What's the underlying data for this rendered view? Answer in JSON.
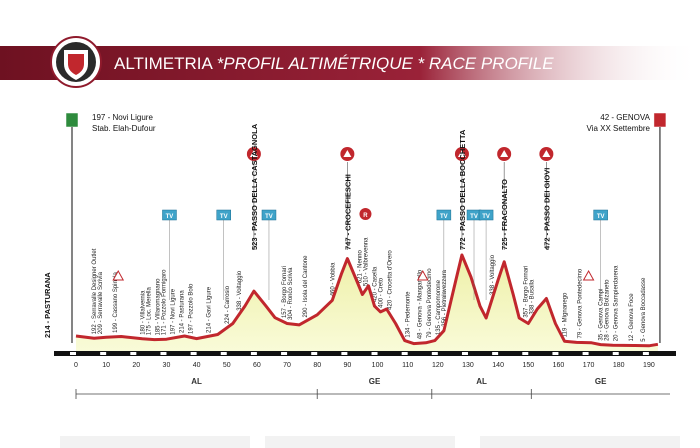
{
  "header": {
    "title_a": "ALTIMETRIA ",
    "title_b": "*PROFIL ALTIMÉTRIQUE * RACE PROFILE"
  },
  "chart_data": {
    "type": "area",
    "title": "ALTIMETRIA *PROFIL ALTIMÉTRIQUE * RACE PROFILE",
    "xlabel": "",
    "ylabel": "",
    "xlim": [
      0,
      197
    ],
    "ylim": [
      0,
      800
    ],
    "x_ticks": [
      0,
      10,
      20,
      30,
      40,
      50,
      60,
      70,
      80,
      90,
      100,
      110,
      120,
      130,
      140,
      150,
      160,
      170,
      180,
      190
    ],
    "profile": [
      [
        0,
        214
      ],
      [
        6,
        192
      ],
      [
        10,
        205
      ],
      [
        15,
        210
      ],
      [
        22,
        180
      ],
      [
        26,
        160
      ],
      [
        30,
        171
      ],
      [
        36,
        214
      ],
      [
        40,
        185
      ],
      [
        47,
        224
      ],
      [
        52,
        300
      ],
      [
        56,
        420
      ],
      [
        59,
        523
      ],
      [
        63,
        420
      ],
      [
        66,
        340
      ],
      [
        70,
        300
      ],
      [
        74,
        290
      ],
      [
        80,
        360
      ],
      [
        85,
        460
      ],
      [
        88,
        640
      ],
      [
        90,
        747
      ],
      [
        93,
        600
      ],
      [
        95,
        500
      ],
      [
        97,
        560
      ],
      [
        99,
        420
      ],
      [
        101,
        380
      ],
      [
        103,
        400
      ],
      [
        106,
        300
      ],
      [
        109,
        134
      ],
      [
        112,
        60
      ],
      [
        116,
        79
      ],
      [
        119,
        135
      ],
      [
        122,
        250
      ],
      [
        126,
        600
      ],
      [
        128,
        772
      ],
      [
        131,
        620
      ],
      [
        134,
        420
      ],
      [
        136,
        338
      ],
      [
        140,
        600
      ],
      [
        142,
        725
      ],
      [
        145,
        500
      ],
      [
        147,
        338
      ],
      [
        150,
        300
      ],
      [
        153,
        400
      ],
      [
        156,
        472
      ],
      [
        159,
        300
      ],
      [
        162,
        120
      ],
      [
        166,
        90
      ],
      [
        171,
        79
      ],
      [
        174,
        35
      ],
      [
        178,
        20
      ],
      [
        185,
        12
      ],
      [
        190,
        5
      ],
      [
        193,
        42
      ]
    ],
    "summits": [
      {
        "km": 59,
        "label": "523 - PASSO DELLA CASTAGNOLA"
      },
      {
        "km": 90,
        "label": "747 - CROCEFIESCHI"
      },
      {
        "km": 128,
        "label": "772 - PASSO DELLA BOCCHETTA"
      },
      {
        "km": 142,
        "label": "725 - FRACONALTO"
      },
      {
        "km": 156,
        "label": "472 - PASSO DEI GIOVI"
      }
    ],
    "waypoints": [
      {
        "km": 6,
        "label": "192 - Serravalle Designer Outlet"
      },
      {
        "km": 8,
        "label": "209 - Serravalle Scrivia"
      },
      {
        "km": 13,
        "label": "199 - Cassano Spinola"
      },
      {
        "km": 22,
        "label": "180 - Villalvernia"
      },
      {
        "km": 24,
        "label": "175 - Loc. Merella"
      },
      {
        "km": 27,
        "label": "185 - Villaromagnano"
      },
      {
        "km": 29,
        "label": "171 - Pozzolo Formigaro"
      },
      {
        "km": 32,
        "label": "197 - Novi Ligure"
      },
      {
        "km": 35,
        "label": "214 - Pasturana"
      },
      {
        "km": 38,
        "label": "197 - Pozzolo Bolo"
      },
      {
        "km": 44,
        "label": "214 - Gavi Ligure"
      },
      {
        "km": 50,
        "label": "224 - Carrosio"
      },
      {
        "km": 54,
        "label": "338 - Voltaggio"
      },
      {
        "km": 69,
        "label": "157 - Borgo Fornari"
      },
      {
        "km": 71,
        "label": "304 - Ronco Scrivia"
      },
      {
        "km": 76,
        "label": "290 - Isola del Cantone"
      },
      {
        "km": 85,
        "label": "460 - Vobbia"
      },
      {
        "km": 94,
        "label": "621 - Nenno"
      },
      {
        "km": 96,
        "label": "510 - Valbrevenna"
      },
      {
        "km": 99,
        "label": "420 - Casella"
      },
      {
        "km": 101,
        "label": "400 - Creto"
      },
      {
        "km": 104,
        "label": "420 - Crocetta d'Orero"
      },
      {
        "km": 110,
        "label": "134 - Pedemonte"
      },
      {
        "km": 114,
        "label": "48 - Genova - Manganello"
      },
      {
        "km": 117,
        "label": "79 - Genova Pontedecimo"
      },
      {
        "km": 120,
        "label": "135 - Campomorone"
      },
      {
        "km": 122,
        "label": "256 - Pietralavezzara"
      },
      {
        "km": 138,
        "label": "338 - Voltaggio"
      },
      {
        "km": 149,
        "label": "357 - Borgo Fornari"
      },
      {
        "km": 151,
        "label": "338 - Busalla"
      },
      {
        "km": 162,
        "label": "119 - Mignanego"
      },
      {
        "km": 167,
        "label": "79 - Genova Pontedecimo"
      },
      {
        "km": 174,
        "label": "35 - Genova Campi"
      },
      {
        "km": 176,
        "label": "28 - Genova Bolzaneto"
      },
      {
        "km": 179,
        "label": "20 - Genova Sampierdarena"
      },
      {
        "km": 184,
        "label": "12 - Genova Foce"
      },
      {
        "km": 188,
        "label": "5 - Genova Boccadasse"
      }
    ],
    "tv_markers": [
      31,
      49,
      64,
      122,
      132,
      136,
      174
    ],
    "tv_label": "TV",
    "sprint_markers": [
      14,
      115,
      170
    ],
    "feed_marker_km": 96,
    "feed_label": "R",
    "start": {
      "elev_place": "197 - Novi Ligure",
      "venue": "Stab. Elah-Dufour",
      "altitude_label": "214 - PASTURANA"
    },
    "finish": {
      "elev_place": "42 - GENOVA",
      "venue": "Via XX Settembre"
    },
    "regions": [
      {
        "from": 0,
        "to": 80,
        "label": "AL"
      },
      {
        "from": 80,
        "to": 118,
        "label": "GE"
      },
      {
        "from": 118,
        "to": 151,
        "label": "AL"
      },
      {
        "from": 151,
        "to": 197,
        "label": "GE"
      }
    ],
    "colors": {
      "banner": "#8f1a2c",
      "profile_line": "#c1272d",
      "fill_top": "#eef0a8",
      "fill_bottom": "#f9fbd8",
      "tv": "#3fa3c9"
    }
  }
}
